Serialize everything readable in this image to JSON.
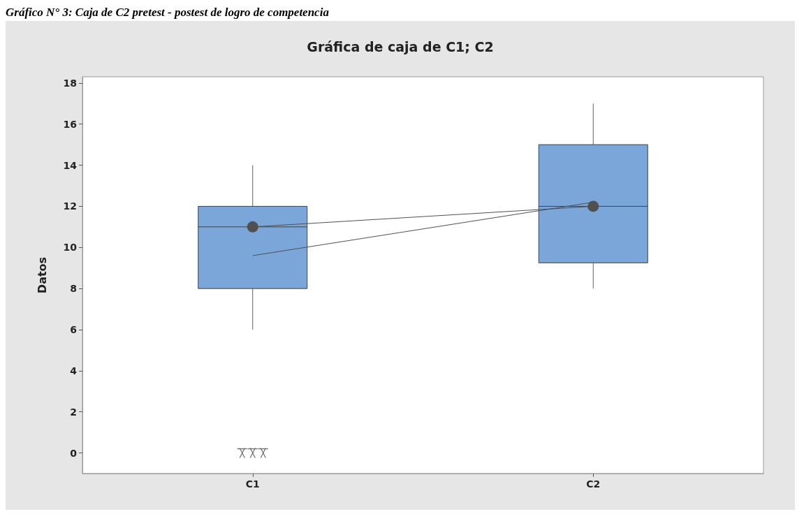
{
  "chart_data": {
    "type": "box",
    "title": "Gráfica de caja de C1; C2",
    "ylabel": "Datos",
    "annotations": [
      "Gráfico N° 3: Caja de C2 pretest - postest de logro de competencia"
    ],
    "categories": [
      "C1",
      "C2"
    ],
    "series": [
      {
        "color": "#7ba6d9",
        "boxes": [
          {
            "low": 6,
            "q1": 8,
            "median": 11,
            "q3": 12,
            "high": 14,
            "outliers": [
              0,
              0,
              0
            ]
          },
          {
            "low": 8,
            "q1": 9.25,
            "median": 12,
            "q3": 15,
            "high": 17
          }
        ]
      },
      {
        "type": "line",
        "color": "#505050",
        "values": [
          11,
          12
        ],
        "marker": "circle"
      },
      {
        "type": "line",
        "color": "#505050",
        "values": [
          9.6,
          12.2
        ],
        "marker": "none"
      }
    ],
    "ylim": [
      -1,
      18.3
    ],
    "yticks": [
      0,
      2,
      4,
      6,
      8,
      10,
      12,
      14,
      16,
      18
    ],
    "grid": false
  }
}
